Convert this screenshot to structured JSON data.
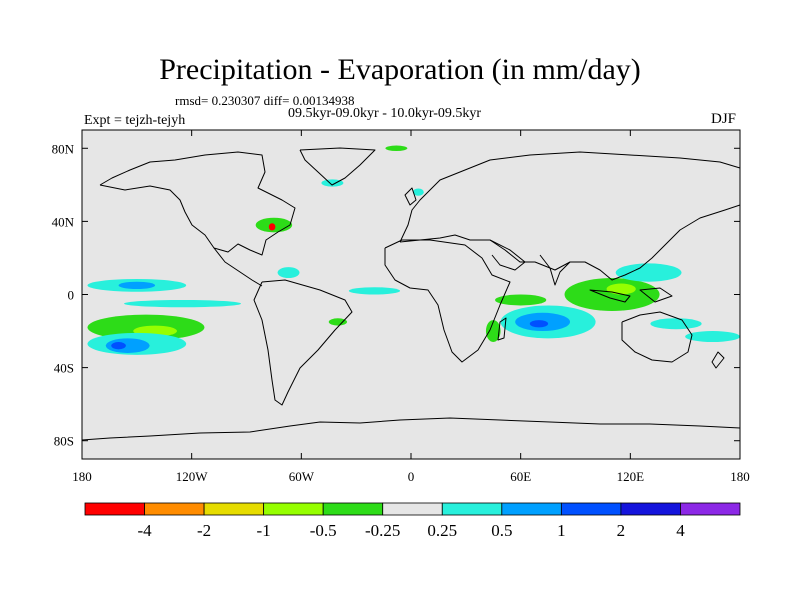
{
  "title": "Precipitation - Evaporation (in mm/day)",
  "stats": "rmsd= 0.230307 diff= 0.00134938",
  "period": "09.5kyr-09.0kyr - 10.0kyr-09.5kyr",
  "experiment": "Expt = tejzh-tejyh",
  "season": "DJF",
  "map": {
    "projection": "cylindrical-equidistant",
    "lon_range": [
      -180,
      180
    ],
    "lat_range": [
      -90,
      90
    ],
    "land_color": "#e6e6e6",
    "ocean_color": "#e6e6e6",
    "coastline_color": "#000000",
    "x_ticks": [
      {
        "lon": -180,
        "label": "180"
      },
      {
        "lon": -120,
        "label": "120W"
      },
      {
        "lon": -60,
        "label": "60W"
      },
      {
        "lon": 0,
        "label": "0"
      },
      {
        "lon": 60,
        "label": "60E"
      },
      {
        "lon": 120,
        "label": "120E"
      },
      {
        "lon": 180,
        "label": "180"
      }
    ],
    "y_ticks": [
      {
        "lat": 80,
        "label": "80N"
      },
      {
        "lat": 40,
        "label": "40N"
      },
      {
        "lat": 0,
        "label": "0"
      },
      {
        "lat": -40,
        "label": "40S"
      },
      {
        "lat": -80,
        "label": "80S"
      }
    ]
  },
  "colorbar": {
    "colors": [
      "#ff0000",
      "#ff8c00",
      "#e6dc00",
      "#96ff00",
      "#2ddc18",
      "#e6e6e6",
      "#28f0dc",
      "#00a0ff",
      "#0050ff",
      "#1414dc",
      "#8c28e6"
    ],
    "labels": [
      "-4",
      "-2",
      "-1",
      "-0.5",
      "-0.25",
      "0.25",
      "0.5",
      "1",
      "2",
      "4"
    ]
  },
  "anomaly_regions": [
    {
      "name": "south-pacific-convergence",
      "lon": -145,
      "lat": -18,
      "rx": 32,
      "ry": 7,
      "color": "#2ddc18"
    },
    {
      "name": "south-pacific-core",
      "lon": -140,
      "lat": -20,
      "rx": 12,
      "ry": 3,
      "color": "#96ff00"
    },
    {
      "name": "south-pacific-cyan",
      "lon": -150,
      "lat": -27,
      "rx": 27,
      "ry": 6,
      "color": "#28f0dc"
    },
    {
      "name": "south-pacific-blue",
      "lon": -155,
      "lat": -28,
      "rx": 12,
      "ry": 4,
      "color": "#00a0ff"
    },
    {
      "name": "south-pacific-deep",
      "lon": -160,
      "lat": -28,
      "rx": 4,
      "ry": 2,
      "color": "#0050ff"
    },
    {
      "name": "tropical-pacific-band",
      "lon": -150,
      "lat": 5,
      "rx": 27,
      "ry": 3.5,
      "color": "#28f0dc"
    },
    {
      "name": "tropical-pacific-blue",
      "lon": -150,
      "lat": 5,
      "rx": 10,
      "ry": 2,
      "color": "#00a0ff"
    },
    {
      "name": "central-pacific-cyan",
      "lon": -125,
      "lat": -5,
      "rx": 32,
      "ry": 2,
      "color": "#28f0dc"
    },
    {
      "name": "indian-ocean-band",
      "lon": 75,
      "lat": -15,
      "rx": 26,
      "ry": 9,
      "color": "#28f0dc"
    },
    {
      "name": "indian-ocean-core",
      "lon": 72,
      "lat": -15,
      "rx": 15,
      "ry": 5,
      "color": "#00a0ff"
    },
    {
      "name": "indian-ocean-deep",
      "lon": 70,
      "lat": -16,
      "rx": 5,
      "ry": 2,
      "color": "#0050ff"
    },
    {
      "name": "arabian-sea-green",
      "lon": 60,
      "lat": -3,
      "rx": 14,
      "ry": 3,
      "color": "#2ddc18"
    },
    {
      "name": "maritime-continent",
      "lon": 110,
      "lat": 0,
      "rx": 26,
      "ry": 9,
      "color": "#2ddc18"
    },
    {
      "name": "maritime-continent-core",
      "lon": 115,
      "lat": 3,
      "rx": 8,
      "ry": 3,
      "color": "#96ff00"
    },
    {
      "name": "west-pacific-cyan",
      "lon": 130,
      "lat": 12,
      "rx": 18,
      "ry": 5,
      "color": "#28f0dc"
    },
    {
      "name": "australia-south-cyan",
      "lon": 145,
      "lat": -16,
      "rx": 14,
      "ry": 3,
      "color": "#28f0dc"
    },
    {
      "name": "south-pacific-east-cyan",
      "lon": 165,
      "lat": -23,
      "rx": 15,
      "ry": 3,
      "color": "#28f0dc"
    },
    {
      "name": "north-atlantic-green",
      "lon": -75,
      "lat": 38,
      "rx": 10,
      "ry": 4,
      "color": "#2ddc18"
    },
    {
      "name": "gulf-stream-hotspot",
      "lon": -76,
      "lat": 37,
      "rx": 1.8,
      "ry": 2,
      "color": "#ff0000"
    },
    {
      "name": "greenland-south-cyan",
      "lon": -43,
      "lat": 61,
      "rx": 6,
      "ry": 2,
      "color": "#28f0dc"
    },
    {
      "name": "arctic-green",
      "lon": -8,
      "lat": 80,
      "rx": 6,
      "ry": 1.5,
      "color": "#2ddc18"
    },
    {
      "name": "north-sea-cyan",
      "lon": 4,
      "lat": 56,
      "rx": 3,
      "ry": 2,
      "color": "#28f0dc"
    },
    {
      "name": "caribbean-cyan",
      "lon": -67,
      "lat": 12,
      "rx": 6,
      "ry": 3,
      "color": "#28f0dc"
    },
    {
      "name": "equatorial-atlantic-cyan",
      "lon": -20,
      "lat": 2,
      "rx": 14,
      "ry": 2,
      "color": "#28f0dc"
    },
    {
      "name": "south-atlantic-green",
      "lon": -40,
      "lat": -15,
      "rx": 5,
      "ry": 2,
      "color": "#2ddc18"
    },
    {
      "name": "mozambique-green",
      "lon": 45,
      "lat": -20,
      "rx": 4,
      "ry": 6,
      "color": "#2ddc18"
    }
  ]
}
